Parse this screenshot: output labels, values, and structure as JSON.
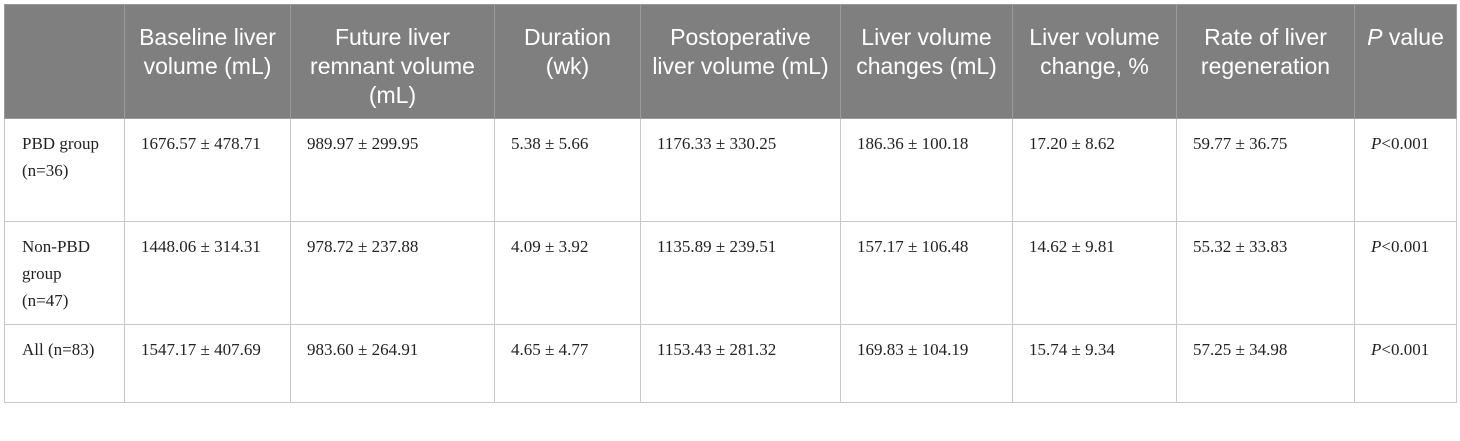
{
  "table": {
    "headers": [
      "",
      "Baseline liver volume (mL)",
      "Future liver remnant volume (mL)",
      "Duration (wk)",
      "Postoperative liver volume (mL)",
      "Liver volume changes (mL)",
      "Liver volume change, %",
      "Rate of liver regeneration",
      "value"
    ],
    "header_p_symbol": "P",
    "rows": [
      {
        "group": "PBD group (n=36)",
        "baseline": "1676.57 ± 478.71",
        "flr": "989.97 ± 299.95",
        "duration": "5.38 ± 5.66",
        "postop": "1176.33 ± 330.25",
        "changes": "186.36 ± 100.18",
        "change_pct": "17.20 ± 8.62",
        "regen": "59.77 ± 36.75",
        "p_symbol": "P",
        "p_value": "<0.001"
      },
      {
        "group": "Non-PBD group (n=47)",
        "baseline": "1448.06 ± 314.31",
        "flr": "978.72 ± 237.88",
        "duration": "4.09 ± 3.92",
        "postop": "1135.89 ± 239.51",
        "changes": "157.17 ± 106.48",
        "change_pct": "14.62 ± 9.81",
        "regen": "55.32 ± 33.83",
        "p_symbol": "P",
        "p_value": "<0.001"
      },
      {
        "group": "All (n=83)",
        "baseline": "1547.17 ± 407.69",
        "flr": "983.60 ± 264.91",
        "duration": "4.65 ± 4.77",
        "postop": "1153.43 ± 281.32",
        "changes": "169.83 ± 104.19",
        "change_pct": "15.74 ± 9.34",
        "regen": "57.25 ± 34.98",
        "p_symbol": "P",
        "p_value": "<0.001"
      }
    ]
  }
}
